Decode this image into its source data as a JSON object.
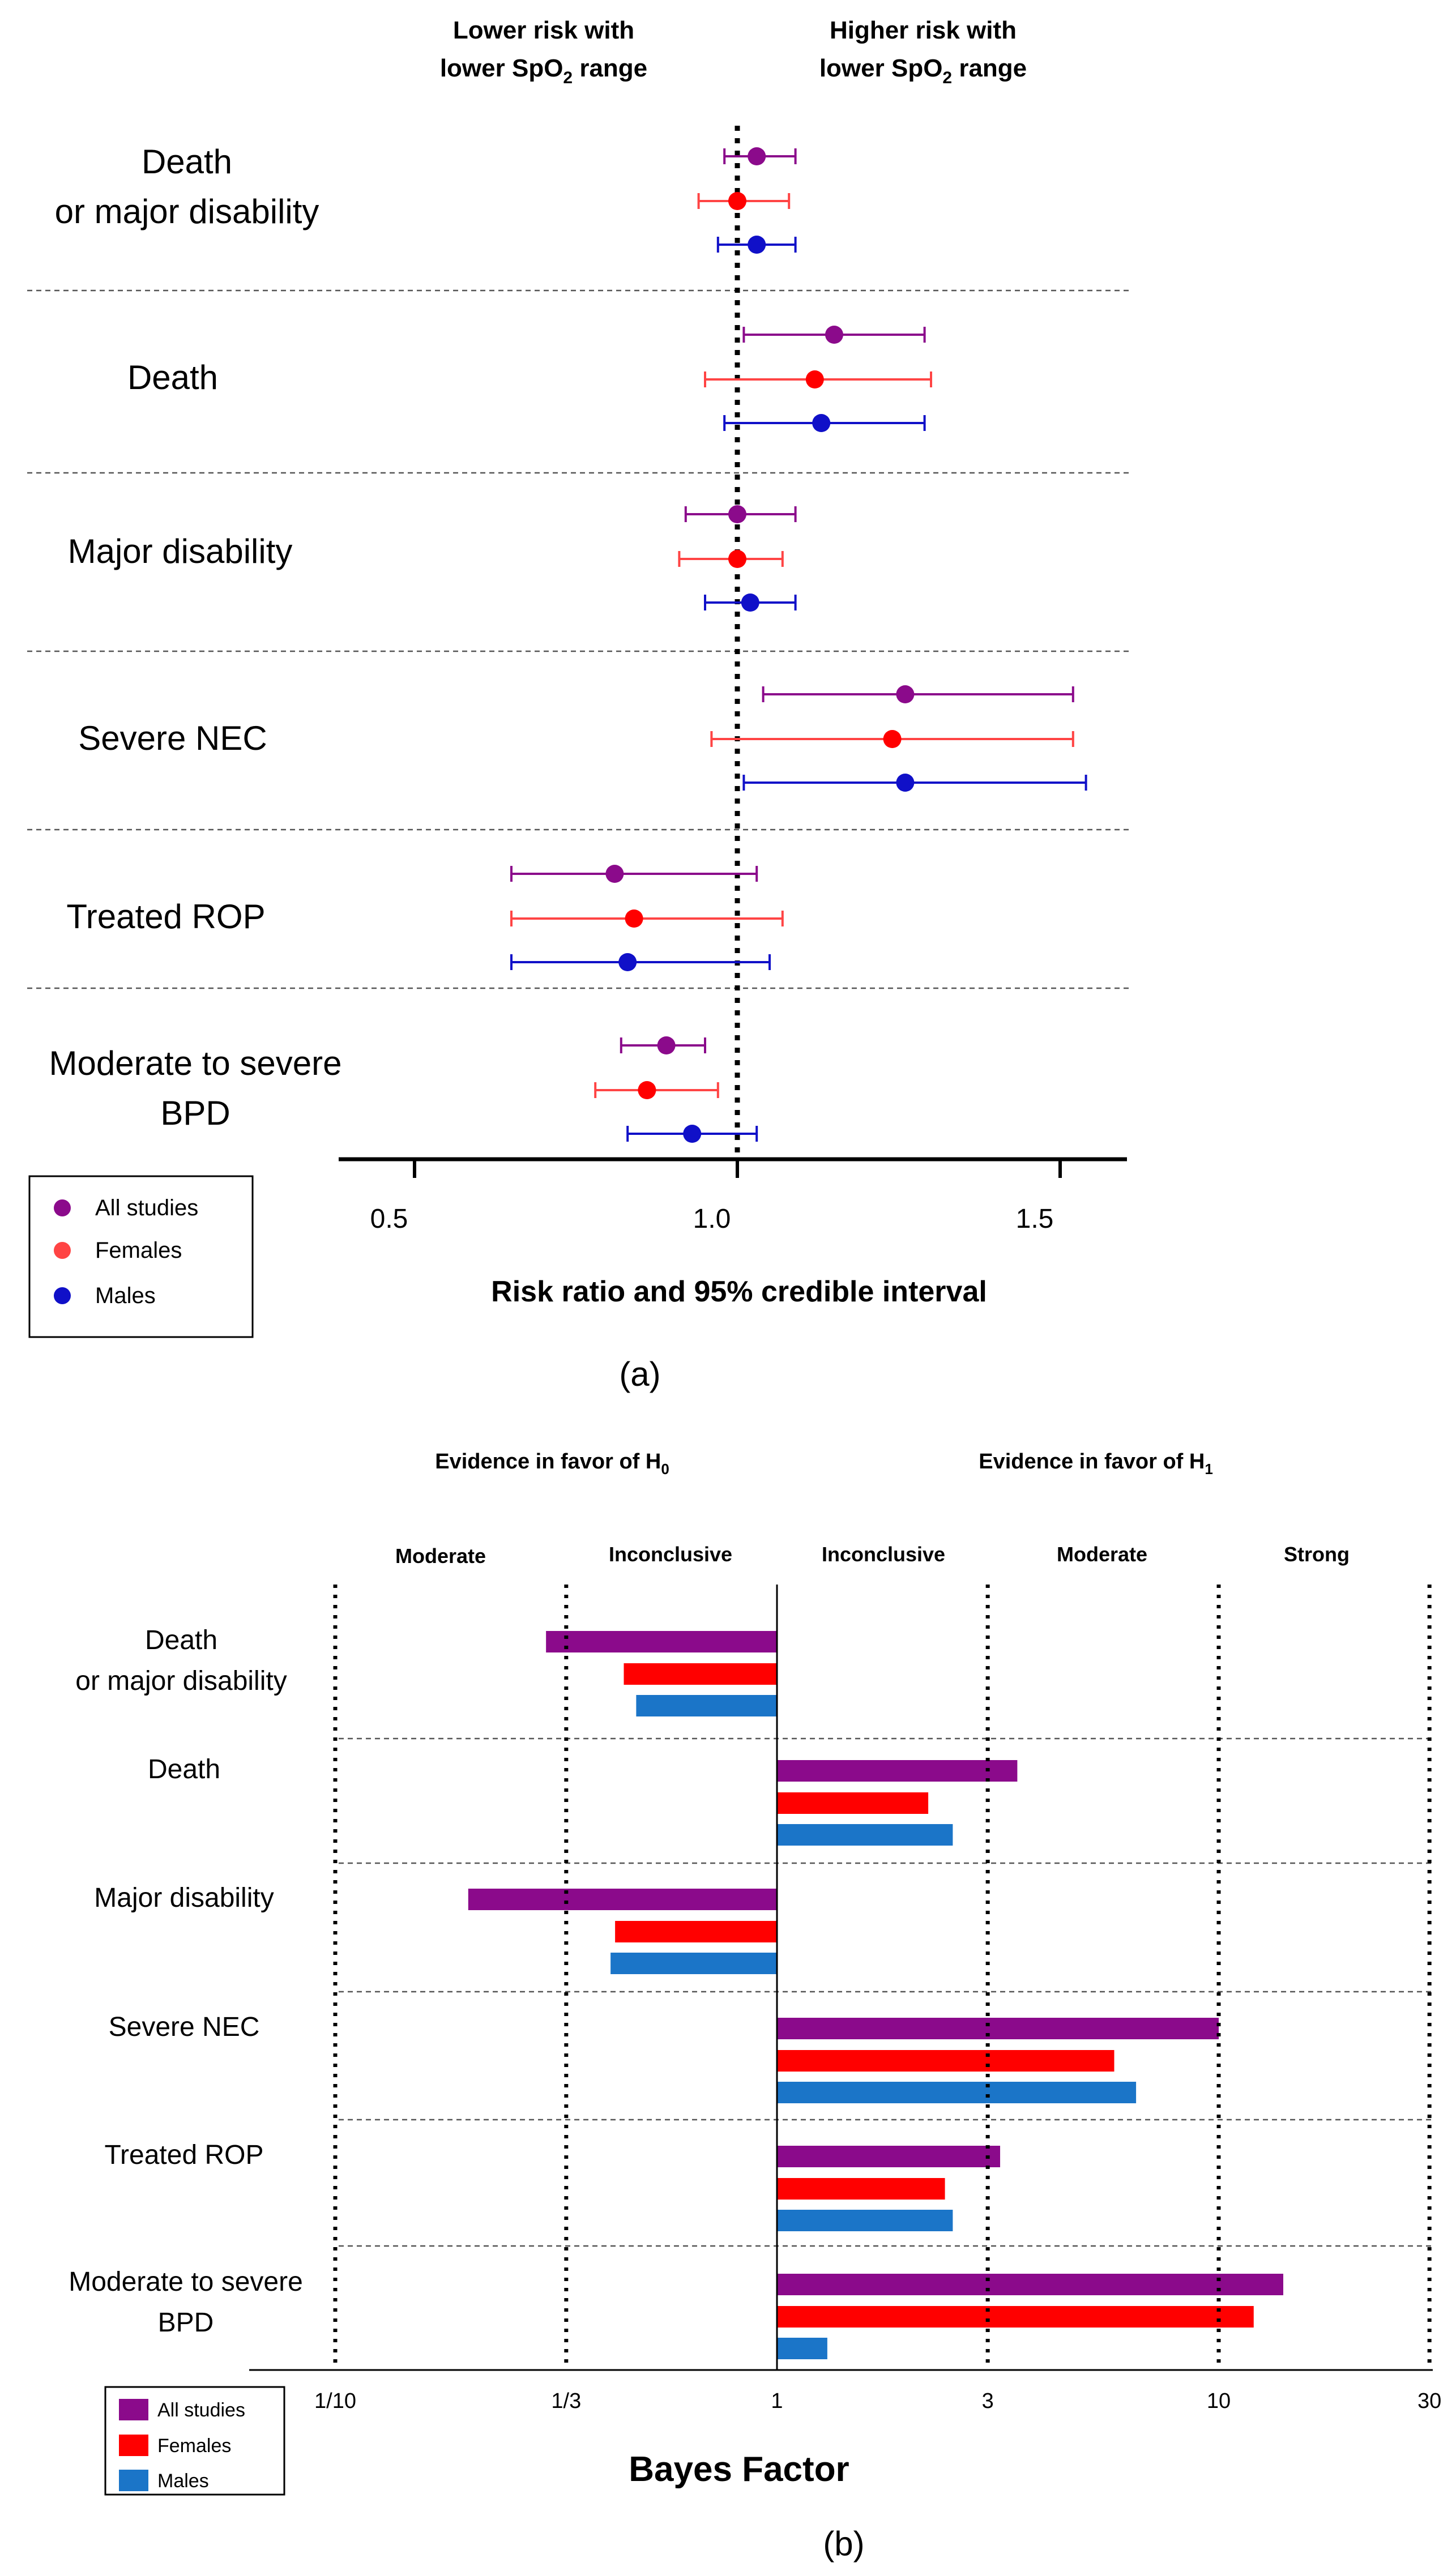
{
  "colors": {
    "all": "#8B0A8B",
    "all_dark": "#6E0F5E",
    "females": "#FF4444",
    "females_bar": "#FF0000",
    "males": "#1010C8",
    "males_bar": "#1B75C8"
  },
  "panel_a": {
    "header_left": [
      "Lower risk with",
      "lower SpO",
      "2",
      " range"
    ],
    "header_right": [
      "Higher risk with",
      "lower SpO",
      "2",
      " range"
    ],
    "xlabel": "Risk ratio and 95% credible interval",
    "caption": "(a)",
    "legend": [
      "All studies",
      "Females",
      "Males"
    ]
  },
  "panel_b": {
    "header_left": [
      "Evidence in favor of H",
      "0"
    ],
    "header_right": [
      "Evidence in favor of H",
      "1"
    ],
    "zones": [
      "Moderate",
      "Inconclusive",
      "Inconclusive",
      "Moderate",
      "Strong"
    ],
    "xlabel": "Bayes Factor",
    "caption": "(b)",
    "legend": [
      "All studies",
      "Females",
      "Males"
    ]
  },
  "chart_data": [
    {
      "type": "scatter",
      "title": "",
      "xlabel": "Risk ratio and 95% credible interval",
      "xlim": [
        0.4,
        1.62
      ],
      "reference_line": 1.0,
      "x_ticks": [
        0.5,
        1.0,
        1.5
      ],
      "x_tick_labels": [
        "0.5",
        "1.0",
        "1.5"
      ],
      "groups": [
        {
          "name": [
            "Death",
            "or major disability"
          ],
          "points": [
            {
              "series": "All studies",
              "est": 1.03,
              "lo": 0.98,
              "hi": 1.09
            },
            {
              "series": "Females",
              "est": 1.0,
              "lo": 0.94,
              "hi": 1.08
            },
            {
              "series": "Males",
              "est": 1.03,
              "lo": 0.97,
              "hi": 1.09
            }
          ]
        },
        {
          "name": [
            "Death"
          ],
          "points": [
            {
              "series": "All studies",
              "est": 1.15,
              "lo": 1.01,
              "hi": 1.29
            },
            {
              "series": "Females",
              "est": 1.12,
              "lo": 0.95,
              "hi": 1.3
            },
            {
              "series": "Males",
              "est": 1.13,
              "lo": 0.98,
              "hi": 1.29
            }
          ]
        },
        {
          "name": [
            "Major disability"
          ],
          "points": [
            {
              "series": "All studies",
              "est": 1.0,
              "lo": 0.92,
              "hi": 1.09
            },
            {
              "series": "Females",
              "est": 1.0,
              "lo": 0.91,
              "hi": 1.07
            },
            {
              "series": "Males",
              "est": 1.02,
              "lo": 0.95,
              "hi": 1.09
            }
          ]
        },
        {
          "name": [
            "Severe NEC"
          ],
          "points": [
            {
              "series": "All studies",
              "est": 1.26,
              "lo": 1.04,
              "hi": 1.52
            },
            {
              "series": "Females",
              "est": 1.24,
              "lo": 0.96,
              "hi": 1.52
            },
            {
              "series": "Males",
              "est": 1.26,
              "lo": 1.01,
              "hi": 1.54
            }
          ]
        },
        {
          "name": [
            "Treated ROP"
          ],
          "points": [
            {
              "series": "All studies",
              "est": 0.81,
              "lo": 0.65,
              "hi": 1.03
            },
            {
              "series": "Females",
              "est": 0.84,
              "lo": 0.65,
              "hi": 1.07
            },
            {
              "series": "Males",
              "est": 0.83,
              "lo": 0.65,
              "hi": 1.05
            }
          ]
        },
        {
          "name": [
            "Moderate to severe",
            "BPD"
          ],
          "points": [
            {
              "series": "All studies",
              "est": 0.89,
              "lo": 0.82,
              "hi": 0.95
            },
            {
              "series": "Females",
              "est": 0.86,
              "lo": 0.78,
              "hi": 0.97
            },
            {
              "series": "Males",
              "est": 0.93,
              "lo": 0.83,
              "hi": 1.03
            }
          ]
        }
      ]
    },
    {
      "type": "bar",
      "orientation": "horizontal",
      "xlabel": "Bayes Factor",
      "x_scale": "log",
      "xlim": [
        0.1,
        30
      ],
      "x_ticks": [
        0.1,
        0.3333,
        1,
        3,
        10,
        30
      ],
      "x_tick_labels": [
        "1/10",
        "1/3",
        "1",
        "3",
        "10",
        "30"
      ],
      "categories": [
        [
          "Death",
          "or major disability"
        ],
        [
          "Death"
        ],
        [
          "Major disability"
        ],
        [
          "Severe NEC"
        ],
        [
          "Treated ROP"
        ],
        [
          "Moderate to severe",
          "BPD"
        ]
      ],
      "series": [
        {
          "name": "All studies",
          "values": [
            0.3,
            3.5,
            0.2,
            10.0,
            3.2,
            14.0
          ]
        },
        {
          "name": "Females",
          "values": [
            0.45,
            2.2,
            0.43,
            5.8,
            2.4,
            12.0
          ]
        },
        {
          "name": "Males",
          "values": [
            0.48,
            2.5,
            0.42,
            6.5,
            2.5,
            1.3
          ]
        }
      ]
    }
  ]
}
